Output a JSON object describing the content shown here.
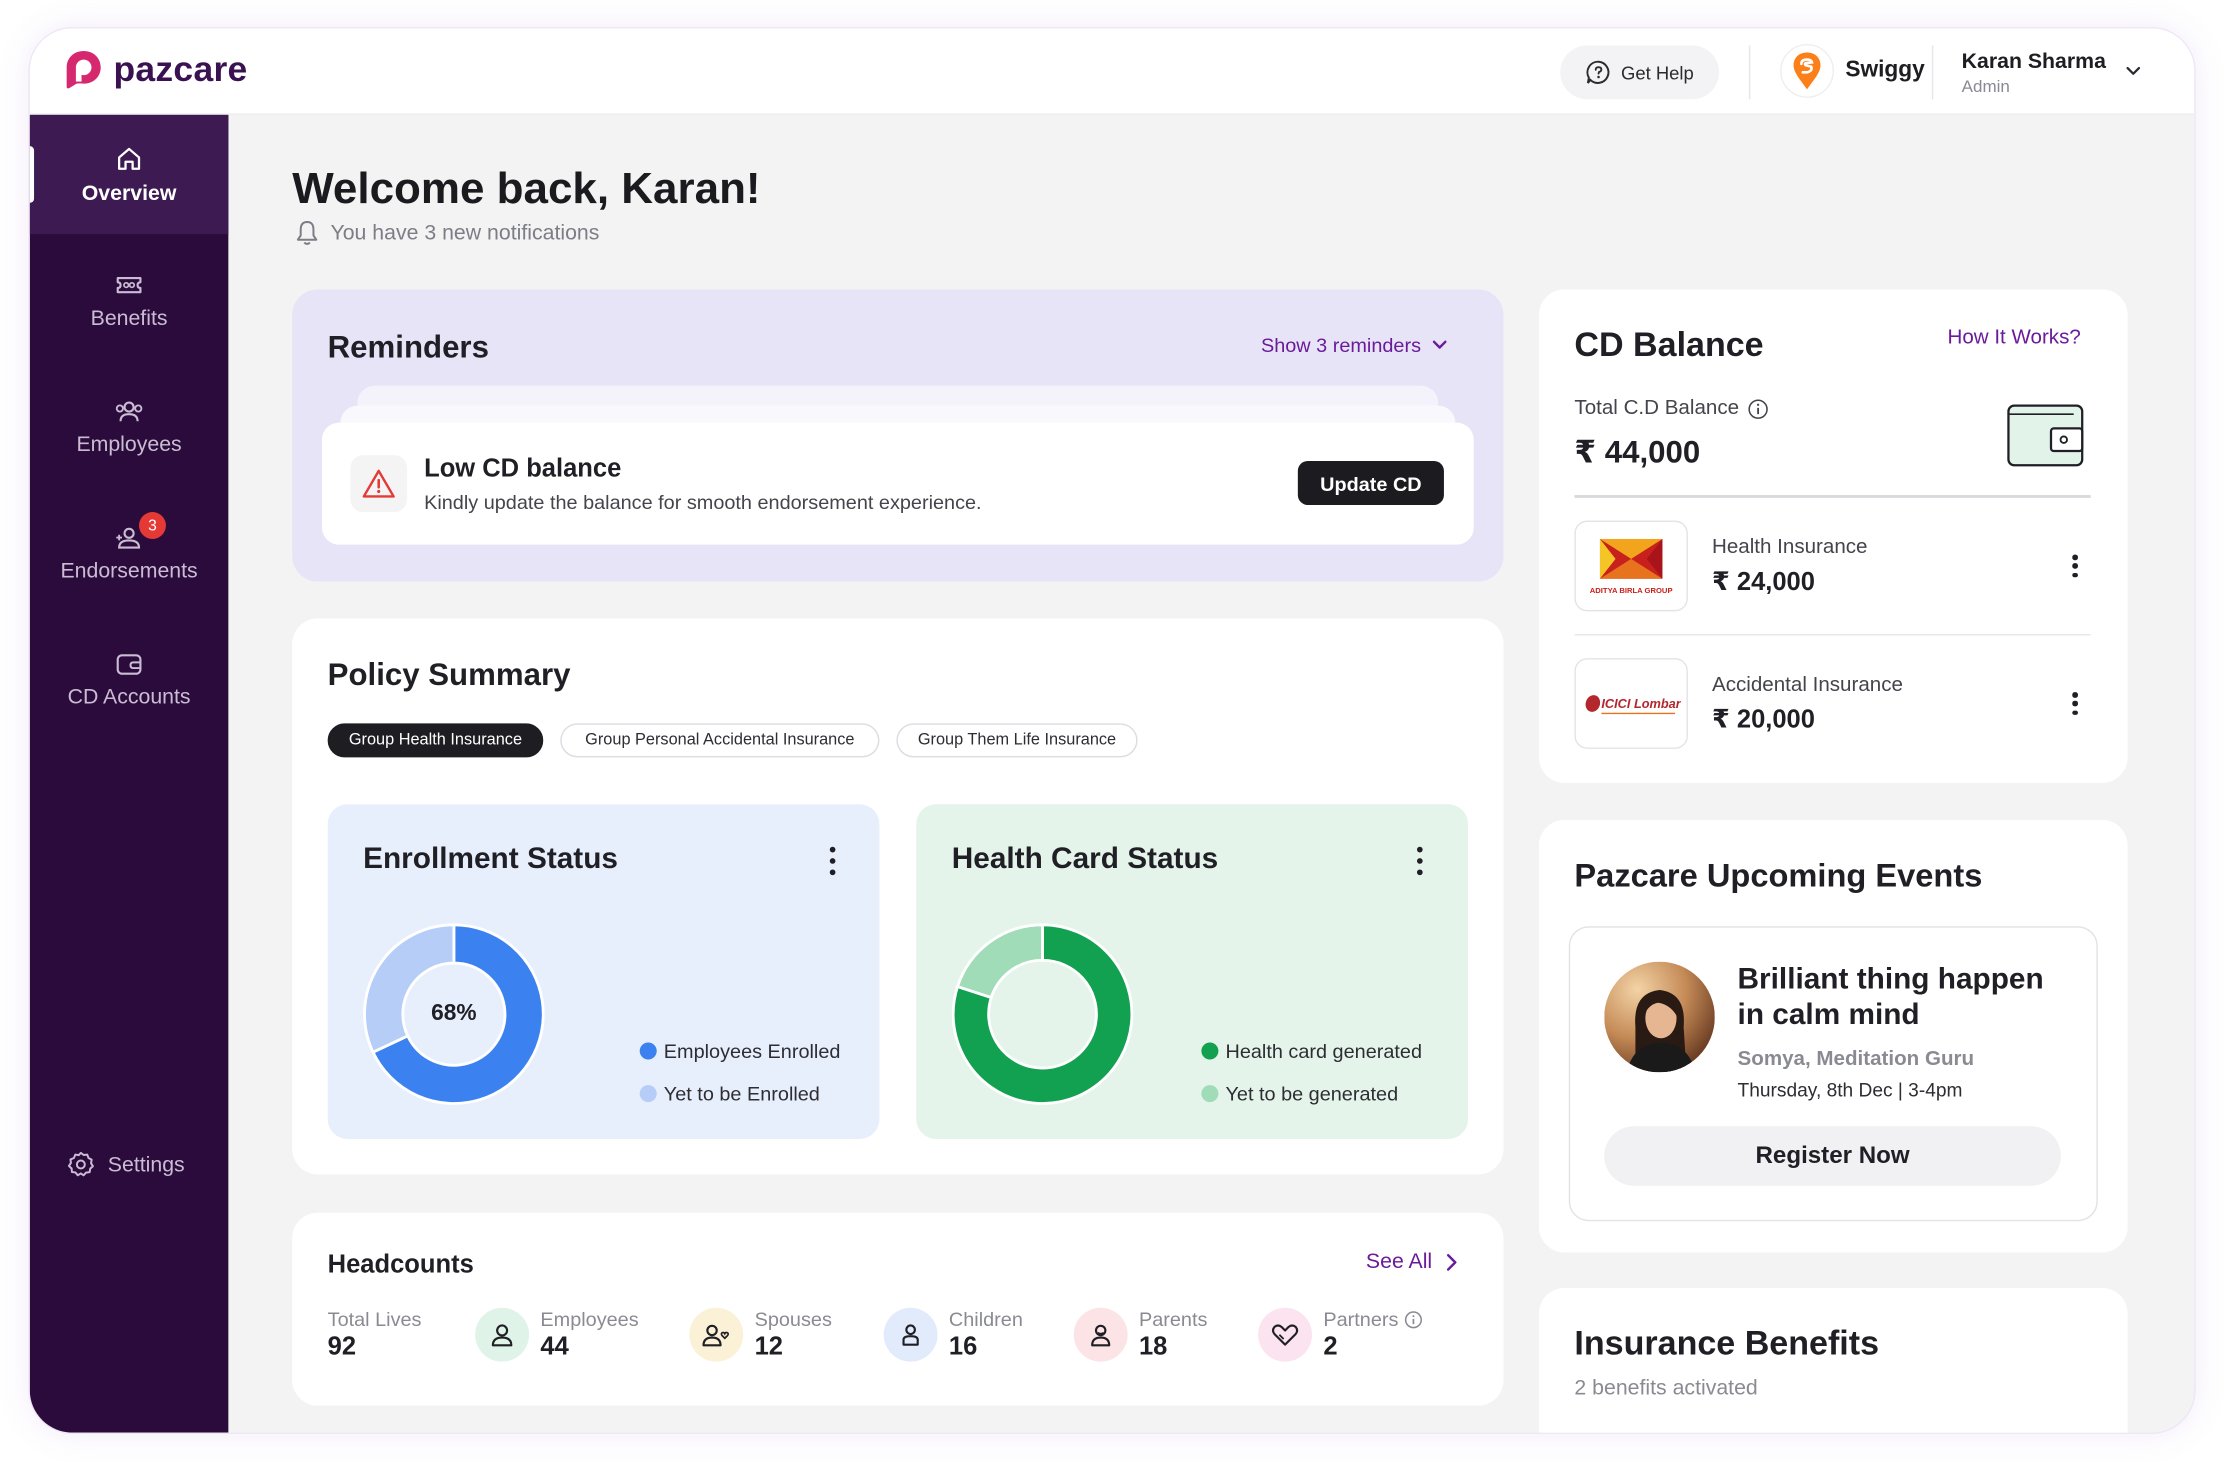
{
  "brand": {
    "name": "pazcare",
    "color": "#d6286e",
    "text_color": "#3a1251"
  },
  "header": {
    "help_label": "Get Help",
    "org_name": "Swiggy",
    "org_color": "#fc8019",
    "user_name": "Karan Sharma",
    "user_role": "Admin"
  },
  "sidebar": {
    "bg_color": "#2b0b3c",
    "items": [
      {
        "label": "Overview",
        "icon": "home-icon"
      },
      {
        "label": "Benefits",
        "icon": "ticket-icon"
      },
      {
        "label": "Employees",
        "icon": "users-icon"
      },
      {
        "label": "Endorsements",
        "icon": "user-plus-icon",
        "badge": "3"
      },
      {
        "label": "CD Accounts",
        "icon": "wallet-icon"
      }
    ],
    "settings_label": "Settings"
  },
  "welcome": {
    "title": "Welcome back, Karan!",
    "notifications": "You have 3 new notifications"
  },
  "reminders": {
    "title": "Reminders",
    "show_label": "Show 3 reminders",
    "card": {
      "title": "Low CD balance",
      "description": "Kindly update the balance for smooth endorsement experience.",
      "action_label": "Update CD"
    }
  },
  "policy_summary": {
    "title": "Policy Summary",
    "tabs": [
      "Group Health Insurance",
      "Group Personal Accidental Insurance",
      "Group Them Life Insurance"
    ],
    "active_tab": "Group Health Insurance",
    "enrollment": {
      "title": "Enrollment Status",
      "center_label": "68%",
      "enrolled_fraction": 0.68,
      "legend": [
        "Employees Enrolled",
        "Yet to be Enrolled"
      ],
      "colors": [
        "#3b82f0",
        "#b5cdf7"
      ]
    },
    "health_card": {
      "title": "Health Card Status",
      "generated_fraction": 0.8,
      "legend": [
        "Health card generated",
        "Yet to be generated"
      ],
      "colors": [
        "#12a150",
        "#9fdcb7"
      ]
    }
  },
  "headcounts": {
    "title": "Headcounts",
    "see_all_label": "See All",
    "total_label": "Total Lives",
    "total_value": "92",
    "items": [
      {
        "label": "Employees",
        "value": "44",
        "icon": "user-icon",
        "bg": "#dff3e8"
      },
      {
        "label": "Spouses",
        "value": "12",
        "icon": "spouse-icon",
        "bg": "#fbf1d6"
      },
      {
        "label": "Children",
        "value": "16",
        "icon": "child-icon",
        "bg": "#e2ebfb"
      },
      {
        "label": "Parents",
        "value": "18",
        "icon": "parent-icon",
        "bg": "#fbe3e6"
      },
      {
        "label": "Partners",
        "value": "2",
        "icon": "heart-icon",
        "bg": "#fbe3ef"
      }
    ]
  },
  "cd_balance": {
    "title": "CD Balance",
    "how_label": "How It Works?",
    "total_label": "Total C.D Balance",
    "total_value": "₹ 44,000",
    "accounts": [
      {
        "name": "Health Insurance",
        "amount": "₹ 24,000",
        "insurer_logo": "aditya-birla-logo",
        "logo_text": "ADITYA BIRLA GROUP"
      },
      {
        "name": "Accidental Insurance",
        "amount": "₹ 20,000",
        "insurer_logo": "icici-lombard-logo",
        "logo_text": "ICICI Lombard"
      }
    ]
  },
  "events": {
    "title": "Pazcare Upcoming Events",
    "event": {
      "title": "Brilliant thing happen in calm mind",
      "host": "Somya, Meditation Guru",
      "time": "Thursday, 8th Dec | 3-4pm",
      "action_label": "Register Now"
    }
  },
  "insurance_benefits": {
    "title": "Insurance Benefits",
    "subtitle": "2 benefits activated"
  },
  "accent_color": "#6a1b9a"
}
